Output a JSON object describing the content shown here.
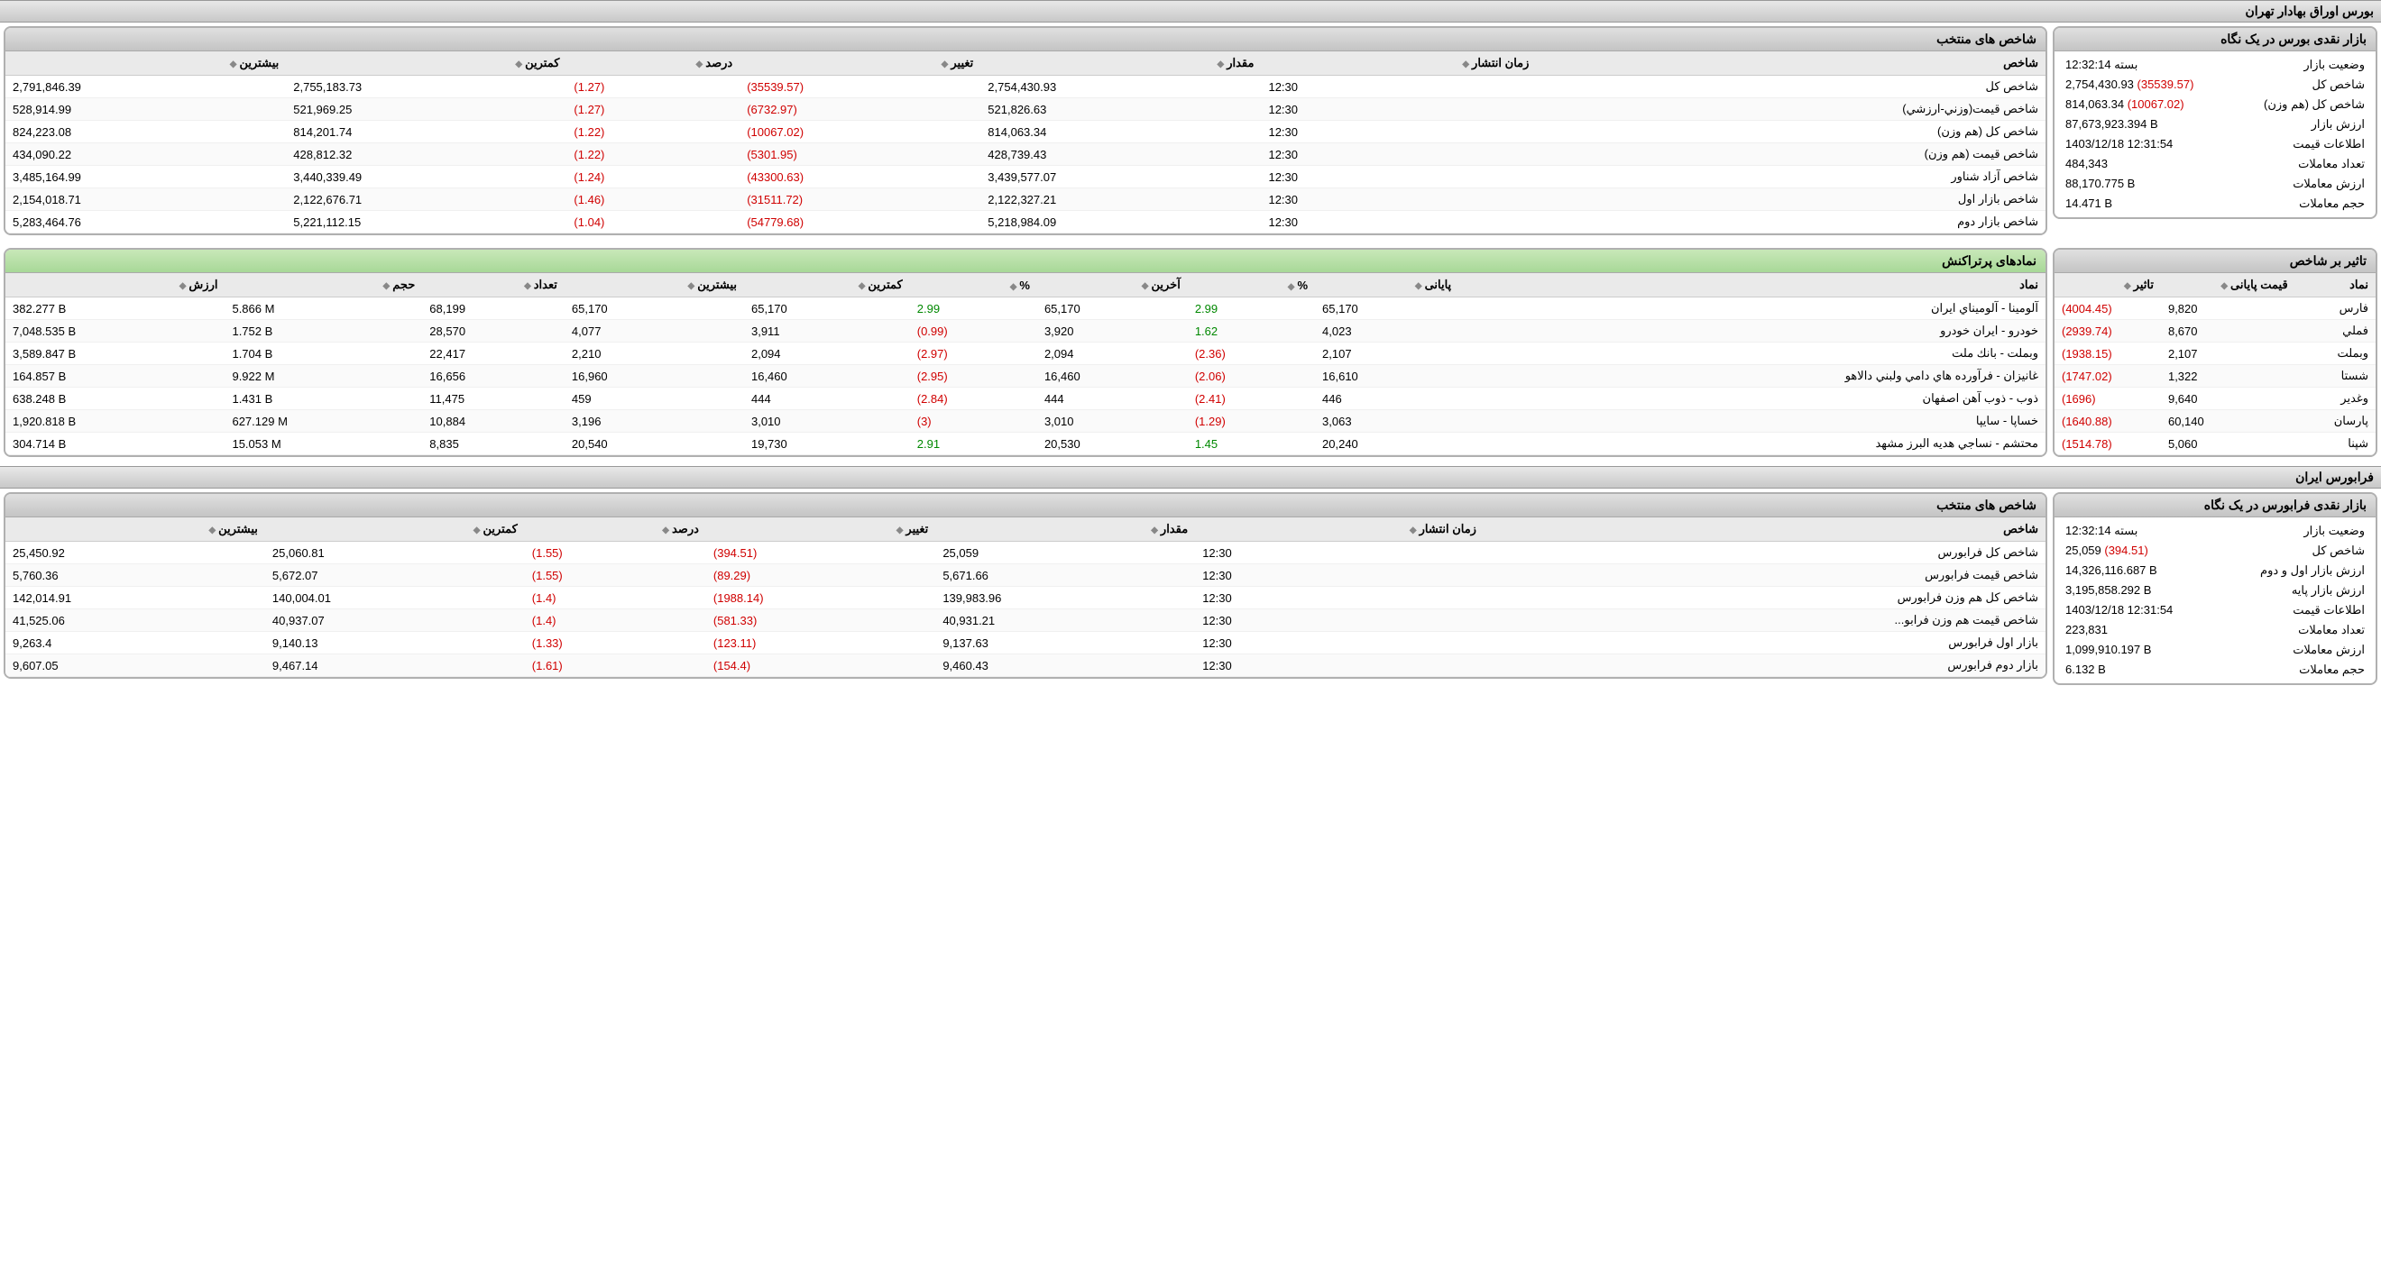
{
  "tse": {
    "title": "بورس اوراق بهادار تهران",
    "glance": {
      "title": "بازار نقدی بورس در یک نگاه",
      "rows": [
        {
          "label": "وضعیت بازار",
          "value": "بسته 12:32:14"
        },
        {
          "label": "شاخص کل",
          "value": "2,754,430.93",
          "delta": "(35539.57)",
          "delta_class": "red"
        },
        {
          "label": "شاخص كل (هم وزن)",
          "value": "814,063.34",
          "delta": "(10067.02)",
          "delta_class": "red"
        },
        {
          "label": "ارزش بازار",
          "value": "87,673,923.394 B"
        },
        {
          "label": "اطلاعات قیمت",
          "value": "1403/12/18 12:31:54"
        },
        {
          "label": "تعداد معاملات",
          "value": "484,343"
        },
        {
          "label": "ارزش معاملات",
          "value": "88,170.775 B"
        },
        {
          "label": "حجم معاملات",
          "value": "14.471 B"
        }
      ]
    },
    "indices": {
      "title": "شاخص های منتخب",
      "columns": [
        "شاخص",
        "زمان انتشار",
        "مقدار",
        "تغییر",
        "درصد",
        "کمترین",
        "بیشترین"
      ],
      "rows": [
        {
          "name": "شاخص كل",
          "time": "12:30",
          "value": "2,754,430.93",
          "change": "(35539.57)",
          "pct": "(1.27)",
          "low": "2,755,183.73",
          "high": "2,791,846.39"
        },
        {
          "name": "شاخص قيمت(وزني-ارزشي)",
          "time": "12:30",
          "value": "521,826.63",
          "change": "(6732.97)",
          "pct": "(1.27)",
          "low": "521,969.25",
          "high": "528,914.99"
        },
        {
          "name": "شاخص كل (هم وزن)",
          "time": "12:30",
          "value": "814,063.34",
          "change": "(10067.02)",
          "pct": "(1.22)",
          "low": "814,201.74",
          "high": "824,223.08"
        },
        {
          "name": "شاخص قيمت (هم وزن)",
          "time": "12:30",
          "value": "428,739.43",
          "change": "(5301.95)",
          "pct": "(1.22)",
          "low": "428,812.32",
          "high": "434,090.22"
        },
        {
          "name": "شاخص آزاد شناور",
          "time": "12:30",
          "value": "3,439,577.07",
          "change": "(43300.63)",
          "pct": "(1.24)",
          "low": "3,440,339.49",
          "high": "3,485,164.99"
        },
        {
          "name": "شاخص بازار اول",
          "time": "12:30",
          "value": "2,122,327.21",
          "change": "(31511.72)",
          "pct": "(1.46)",
          "low": "2,122,676.71",
          "high": "2,154,018.71"
        },
        {
          "name": "شاخص بازار دوم",
          "time": "12:30",
          "value": "5,218,984.09",
          "change": "(54779.68)",
          "pct": "(1.04)",
          "low": "5,221,112.15",
          "high": "5,283,464.76"
        }
      ]
    },
    "effect": {
      "title": "تاثیر بر شاخص",
      "columns": [
        "نماد",
        "قیمت پایانی",
        "تاثیر"
      ],
      "rows": [
        {
          "symbol": "فارس",
          "close": "9,820",
          "effect": "(4004.45)"
        },
        {
          "symbol": "فملي",
          "close": "8,670",
          "effect": "(2939.74)"
        },
        {
          "symbol": "وبملت",
          "close": "2,107",
          "effect": "(1938.15)"
        },
        {
          "symbol": "شستا",
          "close": "1,322",
          "effect": "(1747.02)"
        },
        {
          "symbol": "وغدير",
          "close": "9,640",
          "effect": "(1696)"
        },
        {
          "symbol": "پارسان",
          "close": "60,140",
          "effect": "(1640.88)"
        },
        {
          "symbol": "شپنا",
          "close": "5,060",
          "effect": "(1514.78)"
        }
      ]
    },
    "top": {
      "title": "نمادهای پرتراکنش",
      "columns": [
        "نماد",
        "پایانی",
        "%",
        "آخرین",
        "%",
        "کمترین",
        "بیشترین",
        "تعداد",
        "حجم",
        "ارزش"
      ],
      "rows": [
        {
          "symbol": "آلومينا - آلوميناي ايران",
          "close": "65,170",
          "close_pct": "2.99",
          "close_cls": "green-text",
          "last": "65,170",
          "last_pct": "2.99",
          "last_cls": "green-text",
          "low": "65,170",
          "high": "65,170",
          "count": "68,199",
          "vol": "5.866 M",
          "val": "382.277 B"
        },
        {
          "symbol": "خودرو - ايران‌ خودرو",
          "close": "4,023",
          "close_pct": "1.62",
          "close_cls": "green-text",
          "last": "3,920",
          "last_pct": "(0.99)",
          "last_cls": "red",
          "low": "3,911",
          "high": "4,077",
          "count": "28,570",
          "vol": "1.752 B",
          "val": "7,048.535 B"
        },
        {
          "symbol": "وبملت - بانك ملت",
          "close": "2,107",
          "close_pct": "(2.36)",
          "close_cls": "red",
          "last": "2,094",
          "last_pct": "(2.97)",
          "last_cls": "red",
          "low": "2,094",
          "high": "2,210",
          "count": "22,417",
          "vol": "1.704 B",
          "val": "3,589.847 B"
        },
        {
          "symbol": "غانيزان - فرآورده هاي دامي ولبني دالاهو",
          "close": "16,610",
          "close_pct": "(2.06)",
          "close_cls": "red",
          "last": "16,460",
          "last_pct": "(2.95)",
          "last_cls": "red",
          "low": "16,460",
          "high": "16,960",
          "count": "16,656",
          "vol": "9.922 M",
          "val": "164.857 B"
        },
        {
          "symbol": "ذوب - ذوب آهن اصفهان",
          "close": "446",
          "close_pct": "(2.41)",
          "close_cls": "red",
          "last": "444",
          "last_pct": "(2.84)",
          "last_cls": "red",
          "low": "444",
          "high": "459",
          "count": "11,475",
          "vol": "1.431 B",
          "val": "638.248 B"
        },
        {
          "symbol": "خساپا - سايپا",
          "close": "3,063",
          "close_pct": "(1.29)",
          "close_cls": "red",
          "last": "3,010",
          "last_pct": "(3)",
          "last_cls": "red",
          "low": "3,010",
          "high": "3,196",
          "count": "10,884",
          "vol": "627.129 M",
          "val": "1,920.818 B"
        },
        {
          "symbol": "محتشم - نساجي هديه البرز مشهد",
          "close": "20,240",
          "close_pct": "1.45",
          "close_cls": "green-text",
          "last": "20,530",
          "last_pct": "2.91",
          "last_cls": "green-text",
          "low": "19,730",
          "high": "20,540",
          "count": "8,835",
          "vol": "15.053 M",
          "val": "304.714 B"
        }
      ]
    }
  },
  "ifb": {
    "title": "فرابورس ایران",
    "glance": {
      "title": "بازار نقدی فرابورس در یک نگاه",
      "rows": [
        {
          "label": "وضعیت بازار",
          "value": "بسته 12:32:14"
        },
        {
          "label": "شاخص کل",
          "value": "25,059",
          "delta": "(394.51)",
          "delta_class": "red"
        },
        {
          "label": "ارزش بازار اول و دوم",
          "value": "14,326,116.687 B"
        },
        {
          "label": "ارزش بازار پایه",
          "value": "3,195,858.292 B"
        },
        {
          "label": "اطلاعات قیمت",
          "value": "1403/12/18 12:31:54"
        },
        {
          "label": "تعداد معاملات",
          "value": "223,831"
        },
        {
          "label": "ارزش معاملات",
          "value": "1,099,910.197 B"
        },
        {
          "label": "حجم معاملات",
          "value": "6.132 B"
        }
      ]
    },
    "indices": {
      "title": "شاخص های منتخب",
      "columns": [
        "شاخص",
        "زمان انتشار",
        "مقدار",
        "تغییر",
        "درصد",
        "کمترین",
        "بیشترین"
      ],
      "rows": [
        {
          "name": "شاخص کل فرابورس",
          "time": "12:30",
          "value": "25,059",
          "change": "(394.51)",
          "pct": "(1.55)",
          "low": "25,060.81",
          "high": "25,450.92"
        },
        {
          "name": "شاخص قيمت فرابورس",
          "time": "12:30",
          "value": "5,671.66",
          "change": "(89.29)",
          "pct": "(1.55)",
          "low": "5,672.07",
          "high": "5,760.36"
        },
        {
          "name": "شاخص كل هم وزن فرابورس",
          "time": "12:30",
          "value": "139,983.96",
          "change": "(1988.14)",
          "pct": "(1.4)",
          "low": "140,004.01",
          "high": "142,014.91"
        },
        {
          "name": "شاخص قيمت هم وزن فرابو...",
          "time": "12:30",
          "value": "40,931.21",
          "change": "(581.33)",
          "pct": "(1.4)",
          "low": "40,937.07",
          "high": "41,525.06"
        },
        {
          "name": "بازار اول فرابورس",
          "time": "12:30",
          "value": "9,137.63",
          "change": "(123.11)",
          "pct": "(1.33)",
          "low": "9,140.13",
          "high": "9,263.4"
        },
        {
          "name": "بازار دوم فرابورس",
          "time": "12:30",
          "value": "9,460.43",
          "change": "(154.4)",
          "pct": "(1.61)",
          "low": "9,467.14",
          "high": "9,607.05"
        }
      ]
    }
  }
}
